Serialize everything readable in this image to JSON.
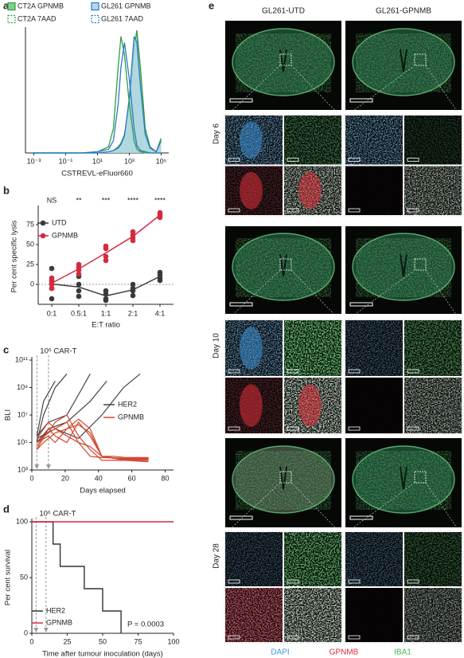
{
  "chart_data": [
    {
      "label": "a",
      "type": "area",
      "xlabel": "CSTREVL-eFluor660",
      "xlog": true,
      "xlim": [
        0.0003,
        300000
      ],
      "xticks": [
        {
          "value": 0.001,
          "label": "10⁻³"
        },
        {
          "value": 0.1,
          "label": "10⁻¹"
        },
        {
          "value": 10,
          "label": "10¹"
        },
        {
          "value": 1000,
          "label": "10³"
        },
        {
          "value": 100000,
          "label": "10⁵"
        }
      ],
      "ylim": [
        0,
        100
      ],
      "x": [
        0.001,
        0.01,
        0.1,
        1,
        10,
        50,
        100,
        200,
        300,
        500,
        1000,
        2000,
        3000,
        5000,
        10000,
        20000,
        50000,
        100000
      ],
      "series": [
        {
          "name": "CT2A GPNMB",
          "color": "#2f9e44",
          "fill": "#86cc8f",
          "values": [
            0,
            0,
            0,
            0,
            0,
            1,
            2,
            5,
            8,
            15,
            40,
            85,
            100,
            70,
            20,
            5,
            1,
            12
          ]
        },
        {
          "name": "GL261 GPNMB",
          "color": "#2b78c5",
          "fill": "#b6d6f0",
          "values": [
            0,
            0,
            0,
            0,
            0,
            1,
            2,
            4,
            7,
            14,
            45,
            95,
            90,
            55,
            15,
            4,
            1,
            10
          ]
        },
        {
          "name": "CT2A 7AAD",
          "color": "#2f9e44",
          "values": [
            0,
            0,
            0,
            0,
            1,
            5,
            20,
            70,
            95,
            80,
            40,
            10,
            3,
            1,
            0,
            0,
            0,
            0
          ]
        },
        {
          "name": "GL261 7AAD",
          "color": "#2b78c5",
          "values": [
            0,
            0,
            0,
            0,
            1,
            3,
            10,
            40,
            70,
            90,
            60,
            20,
            6,
            2,
            1,
            0,
            0,
            0
          ]
        }
      ]
    },
    {
      "label": "b",
      "type": "line",
      "xlabel": "E:T ratio",
      "ylabel": "Per cent specific lysis",
      "categories": [
        "0:1",
        "0.5:1",
        "1:1",
        "2:1",
        "4:1"
      ],
      "annotations": [
        "NS",
        "**",
        "***",
        "****",
        "****"
      ],
      "ylim": [
        -25,
        95
      ],
      "yticks": [
        0,
        25,
        50,
        75
      ],
      "zero_line": true,
      "series": [
        {
          "name": "UTD",
          "color": "#3a3a3a",
          "values": [
            0.5,
            -3.3,
            -14.5,
            -6.8,
            10
          ],
          "points": [
            [
              -18,
              -5,
              5,
              20
            ],
            [
              -15,
              -8,
              0,
              10
            ],
            [
              -20,
              -18,
              -12,
              -8
            ],
            [
              -14,
              -8,
              -5,
              0
            ],
            [
              5,
              8,
              12,
              15
            ]
          ]
        },
        {
          "name": "GPNMB",
          "color": "#d42a40",
          "values": [
            1.5,
            19.5,
            39.5,
            60.3,
            87
          ],
          "points": [
            [
              -5,
              0,
              3,
              8
            ],
            [
              13,
              18,
              22,
              25
            ],
            [
              30,
              35,
              45,
              48
            ],
            [
              55,
              58,
              62,
              66
            ],
            [
              84,
              86,
              88,
              90
            ]
          ]
        }
      ]
    },
    {
      "label": "c",
      "type": "lines",
      "xlabel": "Days elapsed",
      "ylabel": "BLI",
      "ylog": true,
      "annotations": [
        "10⁶ CAR-T"
      ],
      "injections": [
        3,
        10
      ],
      "xlim": [
        0,
        85
      ],
      "xticks": [
        0,
        20,
        40,
        60,
        80
      ],
      "ylim": [
        1000,
        100000000000
      ],
      "yticks": [
        {
          "value": 1000,
          "label": "10³"
        },
        {
          "value": 100000,
          "label": "10⁵"
        },
        {
          "value": 10000000,
          "label": "10⁷"
        },
        {
          "value": 1000000000,
          "label": "10⁹"
        },
        {
          "value": 100000000000,
          "label": "10¹¹"
        }
      ],
      "groups": [
        {
          "name": "HER2",
          "color": "#444444",
          "lines": [
            {
              "x": [
                3,
                7,
                14
              ],
              "values": [
                300000.0,
                100000000.0,
                3000000000.0
              ]
            },
            {
              "x": [
                3,
                7,
                14,
                21
              ],
              "values": [
                100000.0,
                10000000.0,
                1000000000.0,
                10000000000.0
              ]
            },
            {
              "x": [
                3,
                10,
                21,
                28,
                35
              ],
              "values": [
                300000.0,
                3000000.0,
                10000000.0,
                300000000.0,
                10000000000.0
              ]
            },
            {
              "x": [
                3,
                10,
                21,
                35,
                45
              ],
              "values": [
                100000.0,
                1000000.0,
                3000000.0,
                100000000.0,
                3000000000.0
              ]
            },
            {
              "x": [
                3,
                14,
                28,
                42,
                55,
                65
              ],
              "values": [
                200000.0,
                1000000.0,
                200000.0,
                10000000.0,
                1000000000.0,
                10000000000.0
              ]
            }
          ]
        },
        {
          "name": "GPNMB",
          "color": "#d4462e",
          "lines": [
            {
              "x": [
                3,
                10,
                14,
                21,
                28,
                35,
                42,
                49,
                56,
                63,
                70
              ],
              "values": [
                100000.0,
                300000.0,
                100000.0,
                1000000.0,
                5000000.0,
                1000000.0,
                10000.0,
                10000.0,
                8000.0,
                8000.0,
                8000.0
              ]
            },
            {
              "x": [
                3,
                10,
                14,
                21,
                28,
                35,
                42,
                56,
                70
              ],
              "values": [
                30000.0,
                1000000.0,
                300000.0,
                100000.0,
                3000000.0,
                300000.0,
                10000.0,
                6000.0,
                6000.0
              ]
            },
            {
              "x": [
                3,
                10,
                14,
                21,
                28,
                35,
                42,
                56,
                70
              ],
              "values": [
                200000.0,
                3000000.0,
                1000000.0,
                300000.0,
                100000.0,
                10000.0,
                8000.0,
                7000.0,
                7000.0
              ]
            },
            {
              "x": [
                3,
                7,
                14,
                21,
                28,
                35,
                42,
                56,
                70
              ],
              "values": [
                50000.0,
                300000.0,
                1000000.0,
                3000000.0,
                100000.0,
                50000.0,
                10000.0,
                5000.0,
                5000.0
              ]
            },
            {
              "x": [
                3,
                10,
                14,
                21,
                28,
                35,
                42,
                56,
                70
              ],
              "values": [
                100000.0,
                500000.0,
                3000000.0,
                10000000.0,
                300000.0,
                30000.0,
                5000.0,
                5000.0,
                4000.0
              ]
            },
            {
              "x": [
                3,
                7,
                14,
                21,
                28,
                35,
                42,
                56,
                70
              ],
              "values": [
                30000.0,
                100000.0,
                500000.0,
                1000000.0,
                2000000.0,
                500000.0,
                10000.0,
                6000.0,
                6000.0
              ]
            }
          ]
        }
      ]
    },
    {
      "label": "d",
      "type": "step",
      "xlabel": "Time after tumour inoculation (days)",
      "ylabel": "Per cent survival",
      "annotations": [
        "10⁶ CAR-T",
        "P = 0.0003"
      ],
      "injections": [
        3,
        10
      ],
      "xlim": [
        0,
        100
      ],
      "xticks": [
        0,
        25,
        50,
        75,
        100
      ],
      "ylim": [
        0,
        100
      ],
      "yticks": [
        0,
        50,
        100
      ],
      "series": [
        {
          "name": "HER2",
          "color": "#333333",
          "x": [
            0,
            15,
            20,
            37,
            50,
            63
          ],
          "values": [
            100,
            80,
            60,
            40,
            20,
            0
          ]
        },
        {
          "name": "GPNMB",
          "color": "#d42a40",
          "x": [
            0,
            100
          ],
          "values": [
            100,
            100
          ]
        }
      ]
    }
  ],
  "panel_e": {
    "label": "e",
    "columns": [
      "GL261-UTD",
      "GL261-GPNMB"
    ],
    "rows": [
      "Day 6",
      "Day 10",
      "Day 28"
    ],
    "channels": [
      {
        "name": "DAPI",
        "color": "#3d9be0"
      },
      {
        "name": "GPNMB",
        "color": "#d8303a"
      },
      {
        "name": "IBA1",
        "color": "#3fb84a"
      }
    ]
  }
}
